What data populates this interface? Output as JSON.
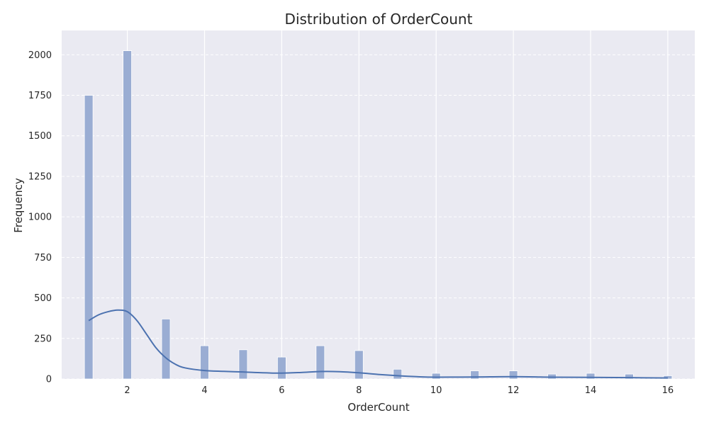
{
  "chart_data": {
    "type": "bar",
    "title": "Distribution of OrderCount",
    "xlabel": "OrderCount",
    "ylabel": "Frequency",
    "xlim": [
      0.3,
      16.7
    ],
    "ylim": [
      0,
      2150
    ],
    "xticks": [
      2,
      4,
      6,
      8,
      10,
      12,
      14,
      16
    ],
    "yticks": [
      0,
      250,
      500,
      750,
      1000,
      1250,
      1500,
      1750,
      2000
    ],
    "grid": true,
    "series": [
      {
        "values": [
          {
            "x": 1,
            "y": 1750
          },
          {
            "x": 2,
            "y": 2025
          },
          {
            "x": 3,
            "y": 370
          },
          {
            "x": 4,
            "y": 205
          },
          {
            "x": 5,
            "y": 180
          },
          {
            "x": 6,
            "y": 135
          },
          {
            "x": 7,
            "y": 205
          },
          {
            "x": 8,
            "y": 175
          },
          {
            "x": 9,
            "y": 60
          },
          {
            "x": 10,
            "y": 35
          },
          {
            "x": 11,
            "y": 50
          },
          {
            "x": 12,
            "y": 50
          },
          {
            "x": 13,
            "y": 30
          },
          {
            "x": 14,
            "y": 35
          },
          {
            "x": 15,
            "y": 30
          },
          {
            "x": 16,
            "y": 20
          }
        ]
      }
    ],
    "kde": [
      {
        "x": 1.0,
        "y": 360
      },
      {
        "x": 1.25,
        "y": 395
      },
      {
        "x": 1.5,
        "y": 415
      },
      {
        "x": 1.75,
        "y": 425
      },
      {
        "x": 2.0,
        "y": 415
      },
      {
        "x": 2.25,
        "y": 360
      },
      {
        "x": 2.5,
        "y": 275
      },
      {
        "x": 2.75,
        "y": 190
      },
      {
        "x": 3.0,
        "y": 130
      },
      {
        "x": 3.25,
        "y": 90
      },
      {
        "x": 3.5,
        "y": 68
      },
      {
        "x": 4.0,
        "y": 52
      },
      {
        "x": 4.5,
        "y": 47
      },
      {
        "x": 5.0,
        "y": 43
      },
      {
        "x": 5.5,
        "y": 38
      },
      {
        "x": 6.0,
        "y": 36
      },
      {
        "x": 6.5,
        "y": 40
      },
      {
        "x": 7.0,
        "y": 46
      },
      {
        "x": 7.5,
        "y": 45
      },
      {
        "x": 8.0,
        "y": 38
      },
      {
        "x": 8.5,
        "y": 28
      },
      {
        "x": 9.0,
        "y": 20
      },
      {
        "x": 9.5,
        "y": 14
      },
      {
        "x": 10.0,
        "y": 11
      },
      {
        "x": 11.0,
        "y": 12
      },
      {
        "x": 12.0,
        "y": 14
      },
      {
        "x": 13.0,
        "y": 11
      },
      {
        "x": 14.0,
        "y": 10
      },
      {
        "x": 15.0,
        "y": 8
      },
      {
        "x": 16.0,
        "y": 6
      }
    ],
    "colors": {
      "background": "#eaeaf2",
      "bar_fill": "#9aadd3",
      "bar_stroke": "#ffffff",
      "kde_line": "#4c72b0",
      "grid": "#ffffff",
      "text": "#262626"
    }
  }
}
